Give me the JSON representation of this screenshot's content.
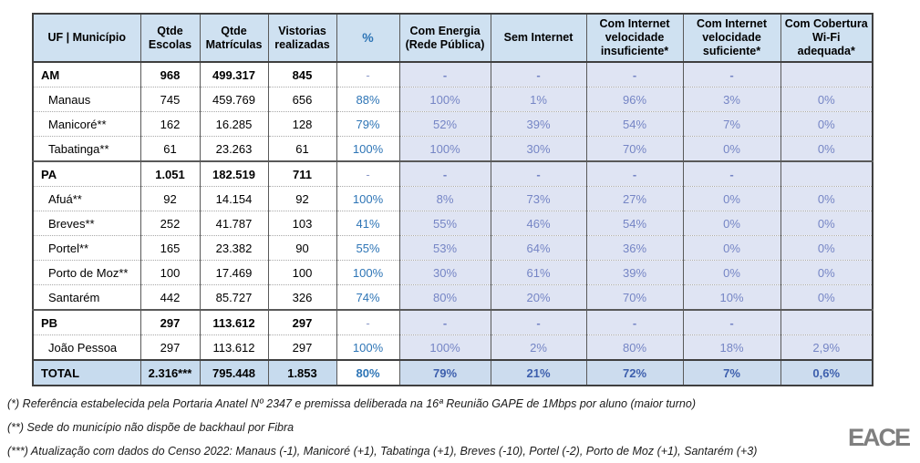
{
  "table": {
    "headers": [
      "UF | Município",
      "Qtde Escolas",
      "Qtde Matrículas",
      "Vistorias realizadas",
      "%",
      "Com Energia (Rede Pública)",
      "Sem Internet",
      "Com Internet velocidade insuficiente*",
      "Com Internet velocidade suficiente*",
      "Com Cobertura Wi-Fi adequada*"
    ],
    "rows": [
      {
        "type": "state",
        "cells": [
          "AM",
          "968",
          "499.317",
          "845",
          "-",
          "-",
          "-",
          "-",
          "-",
          ""
        ]
      },
      {
        "type": "city",
        "cells": [
          "Manaus",
          "745",
          "459.769",
          "656",
          "88%",
          "100%",
          "1%",
          "96%",
          "3%",
          "0%"
        ]
      },
      {
        "type": "city",
        "cells": [
          "Manicoré**",
          "162",
          "16.285",
          "128",
          "79%",
          "52%",
          "39%",
          "54%",
          "7%",
          "0%"
        ]
      },
      {
        "type": "city",
        "cells": [
          "Tabatinga**",
          "61",
          "23.263",
          "61",
          "100%",
          "100%",
          "30%",
          "70%",
          "0%",
          "0%"
        ]
      },
      {
        "type": "state",
        "cells": [
          "PA",
          "1.051",
          "182.519",
          "711",
          "-",
          "-",
          "-",
          "-",
          "-",
          ""
        ]
      },
      {
        "type": "city",
        "cells": [
          "Afuá**",
          "92",
          "14.154",
          "92",
          "100%",
          "8%",
          "73%",
          "27%",
          "0%",
          "0%"
        ]
      },
      {
        "type": "city",
        "cells": [
          "Breves**",
          "252",
          "41.787",
          "103",
          "41%",
          "55%",
          "46%",
          "54%",
          "0%",
          "0%"
        ]
      },
      {
        "type": "city",
        "cells": [
          "Portel**",
          "165",
          "23.382",
          "90",
          "55%",
          "53%",
          "64%",
          "36%",
          "0%",
          "0%"
        ]
      },
      {
        "type": "city",
        "cells": [
          "Porto de Moz**",
          "100",
          "17.469",
          "100",
          "100%",
          "30%",
          "61%",
          "39%",
          "0%",
          "0%"
        ]
      },
      {
        "type": "city",
        "cells": [
          "Santarém",
          "442",
          "85.727",
          "326",
          "74%",
          "80%",
          "20%",
          "70%",
          "10%",
          "0%"
        ]
      },
      {
        "type": "state",
        "cells": [
          "PB",
          "297",
          "113.612",
          "297",
          "-",
          "-",
          "-",
          "-",
          "-",
          ""
        ]
      },
      {
        "type": "city",
        "cells": [
          "João Pessoa",
          "297",
          "113.612",
          "297",
          "100%",
          "100%",
          "2%",
          "80%",
          "18%",
          "2,9%"
        ]
      },
      {
        "type": "total",
        "cells": [
          "TOTAL",
          "2.316***",
          "795.448",
          "1.853",
          "80%",
          "79%",
          "21%",
          "72%",
          "7%",
          "0,6%"
        ]
      }
    ]
  },
  "footnotes": [
    "(*) Referência estabelecida pela Portaria Anatel Nº 2347 e premissa deliberada na 16ª Reunião GAPE de 1Mbps por aluno (maior turno)",
    "(**) Sede do município não dispõe de backhaul por Fibra",
    "(***) Atualização com dados do Censo 2022: Manaus (-1), Manicoré (+1), Tabatinga (+1), Breves (-10), Portel (-2), Porto de Moz (+1), Santarém (+3)"
  ],
  "logo": "EACE",
  "colors": {
    "header_bg": "#CFE1F1",
    "total_bg": "#C7DBEE",
    "lavender_bg": "#DFE4F3",
    "lavender_text": "#7585C5",
    "accent_blue": "#2E75B6",
    "total_accent_text": "#3D5FAD",
    "border_dark": "#3F3F3F",
    "logo_gray": "#7F7F7F"
  }
}
